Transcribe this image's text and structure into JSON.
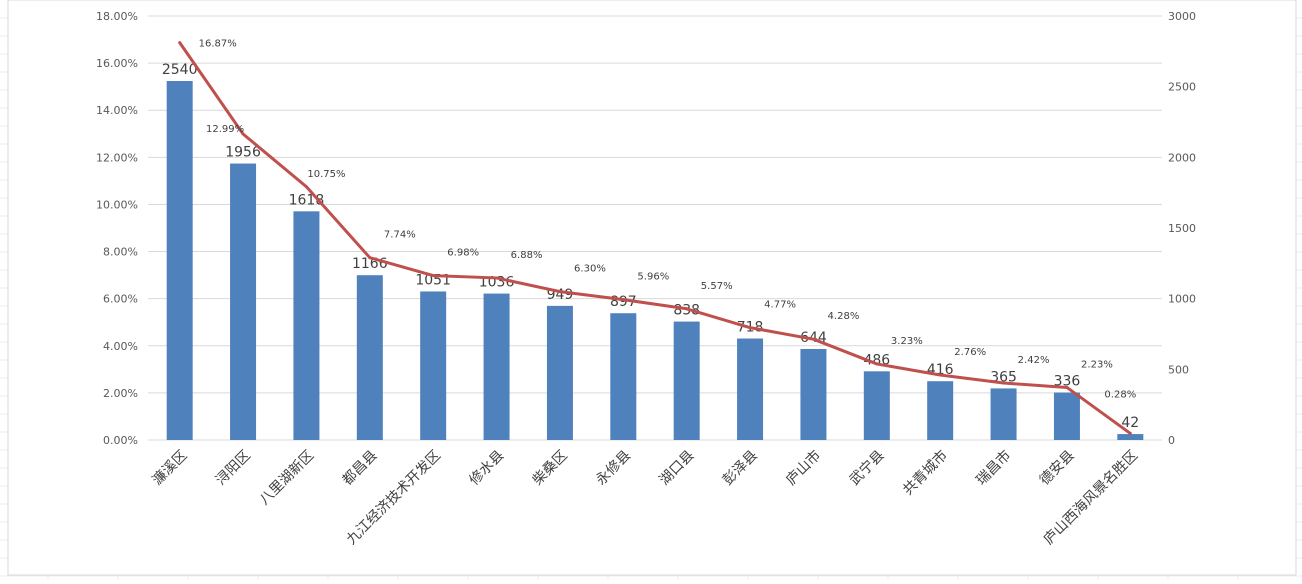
{
  "chart_data": {
    "type": "bar",
    "categories": [
      "濂溪区",
      "浔阳区",
      "八里湖新区",
      "都昌县",
      "九江经济技术开发区",
      "修水县",
      "柴桑区",
      "永修县",
      "湖口县",
      "彭泽县",
      "庐山市",
      "武宁县",
      "共青城市",
      "瑞昌市",
      "德安县",
      "庐山西海风景名胜区"
    ],
    "series": [
      {
        "kind": "bar",
        "axis": "right",
        "values": [
          2540,
          1956,
          1618,
          1166,
          1051,
          1036,
          949,
          897,
          838,
          718,
          644,
          486,
          416,
          365,
          336,
          42
        ],
        "labels": [
          "2540",
          "1956",
          "1618",
          "1166",
          "1051",
          "1036",
          "949",
          "897",
          "838",
          "718",
          "644",
          "486",
          "416",
          "365",
          "336",
          "42"
        ],
        "color": "#4F81BD"
      },
      {
        "kind": "line",
        "axis": "left",
        "values": [
          16.87,
          12.99,
          10.75,
          7.74,
          6.98,
          6.88,
          6.3,
          5.96,
          5.57,
          4.77,
          4.28,
          3.23,
          2.76,
          2.42,
          2.23,
          0.28
        ],
        "labels": [
          "16.87%",
          "12.99%",
          "10.75%",
          "7.74%",
          "6.98%",
          "6.88%",
          "6.30%",
          "5.96%",
          "5.57%",
          "4.77%",
          "4.28%",
          "3.23%",
          "2.76%",
          "2.42%",
          "2.23%",
          "0.28%"
        ],
        "color": "#C0504D"
      }
    ],
    "y_left": {
      "range": [
        0,
        18
      ],
      "ticks": [
        "0.00%",
        "2.00%",
        "4.00%",
        "6.00%",
        "8.00%",
        "10.00%",
        "12.00%",
        "14.00%",
        "16.00%",
        "18.00%"
      ]
    },
    "y_right": {
      "range": [
        0,
        3000
      ],
      "ticks": [
        "0",
        "500",
        "1000",
        "1500",
        "2000",
        "2500",
        "3000"
      ]
    },
    "grid": true,
    "legend": "none",
    "title": ""
  }
}
